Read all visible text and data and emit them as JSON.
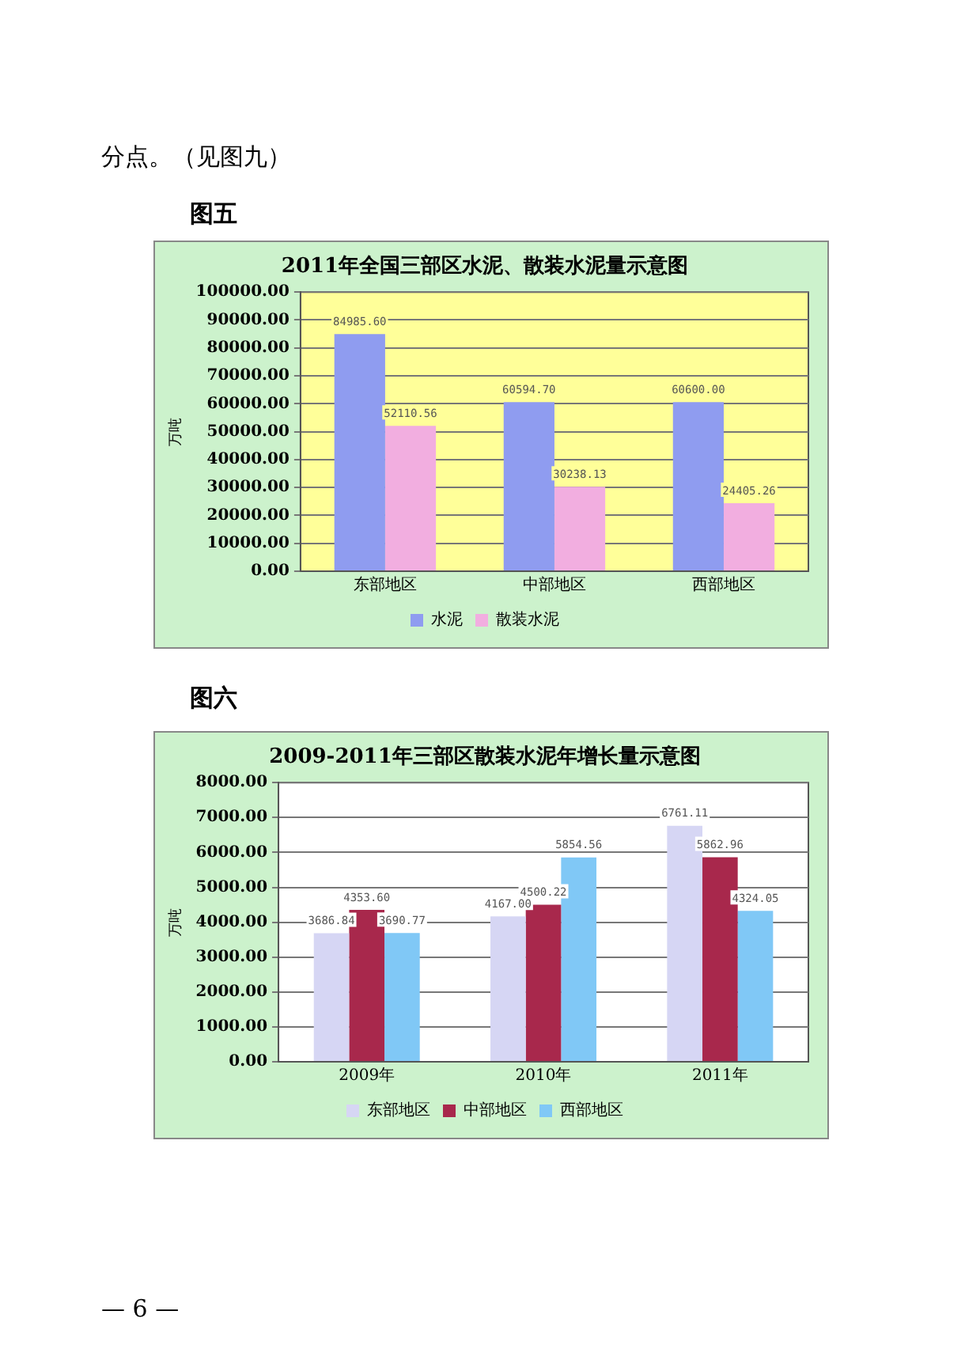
{
  "chart_data": [
    {
      "type": "bar",
      "title": "2011年全国三部区水泥、散装水泥量示意图",
      "ylabel": "万吨",
      "annotations": [
        "分点。（见图九）",
        "图五"
      ],
      "categories": [
        "东部地区",
        "中部地区",
        "西部地区"
      ],
      "series": [
        {
          "name": "水泥",
          "color": "#8f9cf0",
          "values": [
            84985.6,
            60594.7,
            60600
          ],
          "value_labels": [
            "84985.60",
            "60594.70",
            "60600.00"
          ]
        },
        {
          "name": "散装水泥",
          "color": "#f2aee0",
          "values": [
            52110.56,
            30238.13,
            24405.26
          ],
          "value_labels": [
            "52110.56",
            "30238.13",
            "24405.26"
          ]
        }
      ],
      "ylim": [
        0,
        100000
      ],
      "yticks": [
        {
          "value": 0,
          "label": "0.00"
        },
        {
          "value": 10000,
          "label": "10000.00"
        },
        {
          "value": 20000,
          "label": "20000.00"
        },
        {
          "value": 30000,
          "label": "30000.00"
        },
        {
          "value": 40000,
          "label": "40000.00"
        },
        {
          "value": 50000,
          "label": "50000.00"
        },
        {
          "value": 60000,
          "label": "60000.00"
        },
        {
          "value": 70000,
          "label": "70000.00"
        },
        {
          "value": 80000,
          "label": "80000.00"
        },
        {
          "value": 90000,
          "label": "90000.00"
        },
        {
          "value": 100000,
          "label": "100000.00"
        }
      ],
      "grid": "y",
      "legend": "bottom"
    },
    {
      "type": "bar",
      "title": "2009-2011年三部区散装水泥年增长量示意图",
      "ylabel": "万吨",
      "annotations": [
        "图六",
        "— 6 —"
      ],
      "categories": [
        "2009年",
        "2010年",
        "2011年"
      ],
      "series": [
        {
          "name": "东部地区",
          "color": "#d6d6f4",
          "values": [
            3686.84,
            4167,
            6761.11
          ],
          "value_labels": [
            "3686.84",
            "4167.00",
            "6761.11"
          ]
        },
        {
          "name": "中部地区",
          "color": "#a8284c",
          "values": [
            4353.6,
            4500.22,
            5862.96
          ],
          "value_labels": [
            "4353.60",
            "4500.22",
            "5862.96"
          ]
        },
        {
          "name": "西部地区",
          "color": "#80c8f6",
          "values": [
            3690.77,
            5854.56,
            4324.05
          ],
          "value_labels": [
            "3690.77",
            "5854.56",
            "4324.05"
          ]
        }
      ],
      "ylim": [
        0,
        8000
      ],
      "yticks": [
        {
          "value": 0,
          "label": "0.00"
        },
        {
          "value": 1000,
          "label": "1000.00"
        },
        {
          "value": 2000,
          "label": "2000.00"
        },
        {
          "value": 3000,
          "label": "3000.00"
        },
        {
          "value": 4000,
          "label": "4000.00"
        },
        {
          "value": 5000,
          "label": "5000.00"
        },
        {
          "value": 6000,
          "label": "6000.00"
        },
        {
          "value": 7000,
          "label": "7000.00"
        },
        {
          "value": 8000,
          "label": "8000.00"
        }
      ],
      "grid": "y",
      "legend": "bottom"
    }
  ]
}
